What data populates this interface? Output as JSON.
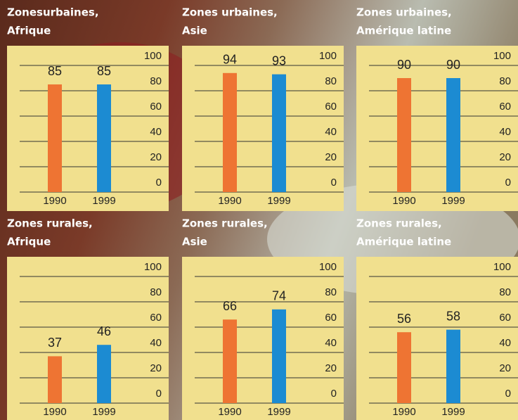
{
  "chart_data": [
    {
      "type": "bar",
      "title": [
        "Zonesurbaines,",
        "Afrique"
      ],
      "categories": [
        "1990",
        "1999"
      ],
      "values": [
        85,
        85
      ],
      "colors": [
        "#ee7433",
        "#1c8bd2"
      ],
      "ylim": [
        0,
        100
      ],
      "yticks": [
        0,
        20,
        40,
        60,
        80,
        100
      ],
      "grid": true
    },
    {
      "type": "bar",
      "title": [
        "Zones urbaines,",
        "Asie"
      ],
      "categories": [
        "1990",
        "1999"
      ],
      "values": [
        94,
        93
      ],
      "colors": [
        "#ee7433",
        "#1c8bd2"
      ],
      "ylim": [
        0,
        100
      ],
      "yticks": [
        0,
        20,
        40,
        60,
        80,
        100
      ],
      "grid": true
    },
    {
      "type": "bar",
      "title": [
        "Zones urbaines,",
        "Amérique latine"
      ],
      "categories": [
        "1990",
        "1999"
      ],
      "values": [
        90,
        90
      ],
      "colors": [
        "#ee7433",
        "#1c8bd2"
      ],
      "ylim": [
        0,
        100
      ],
      "yticks": [
        0,
        20,
        40,
        60,
        80,
        100
      ],
      "grid": true
    },
    {
      "type": "bar",
      "title": [
        "Zones rurales,",
        "Afrique"
      ],
      "categories": [
        "1990",
        "1999"
      ],
      "values": [
        37,
        46
      ],
      "colors": [
        "#ee7433",
        "#1c8bd2"
      ],
      "ylim": [
        0,
        100
      ],
      "yticks": [
        0,
        20,
        40,
        60,
        80,
        100
      ],
      "grid": true
    },
    {
      "type": "bar",
      "title": [
        "Zones rurales,",
        "Asie"
      ],
      "categories": [
        "1990",
        "1999"
      ],
      "values": [
        66,
        74
      ],
      "colors": [
        "#ee7433",
        "#1c8bd2"
      ],
      "ylim": [
        0,
        100
      ],
      "yticks": [
        0,
        20,
        40,
        60,
        80,
        100
      ],
      "grid": true
    },
    {
      "type": "bar",
      "title": [
        "Zones rurales,",
        "Amérique latine"
      ],
      "categories": [
        "1990",
        "1999"
      ],
      "values": [
        56,
        58
      ],
      "colors": [
        "#ee7433",
        "#1c8bd2"
      ],
      "ylim": [
        0,
        100
      ],
      "yticks": [
        0,
        20,
        40,
        60,
        80,
        100
      ],
      "grid": true
    }
  ]
}
